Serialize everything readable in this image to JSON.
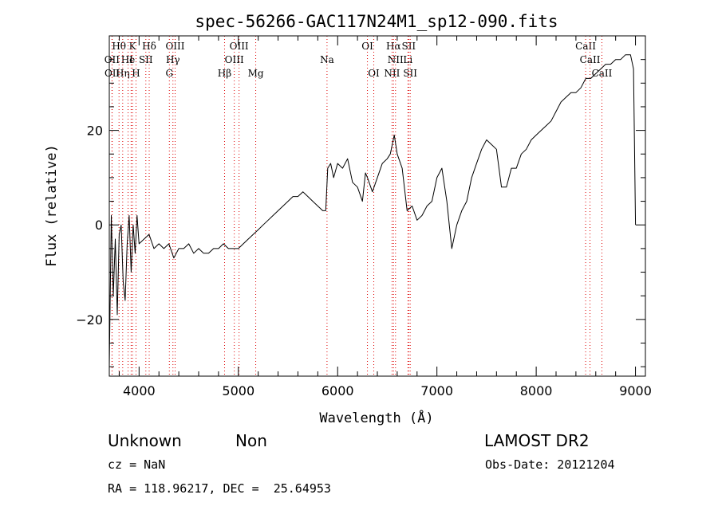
{
  "chart_data": {
    "type": "line",
    "title": "spec-56266-GAC117N24M1_sp12-090.fits",
    "xlabel": "Wavelength (Å)",
    "ylabel": "Flux (relative)",
    "xlim": [
      3700,
      9100
    ],
    "ylim": [
      -32,
      40
    ],
    "x_ticks": [
      4000,
      5000,
      6000,
      7000,
      8000,
      9000
    ],
    "x_tick_labels": [
      "4000",
      "5000",
      "6000",
      "7000",
      "8000",
      "9000"
    ],
    "y_ticks": [
      -20,
      0,
      20
    ],
    "y_tick_labels": [
      "−20",
      "0",
      "20"
    ],
    "grid": false,
    "series": [
      {
        "color": "#000000",
        "x": [
          3700,
          3720,
          3740,
          3760,
          3780,
          3800,
          3820,
          3840,
          3860,
          3880,
          3900,
          3920,
          3940,
          3960,
          3980,
          4000,
          4050,
          4100,
          4150,
          4200,
          4250,
          4300,
          4350,
          4400,
          4450,
          4500,
          4550,
          4600,
          4650,
          4700,
          4750,
          4800,
          4850,
          4900,
          4950,
          5000,
          5050,
          5100,
          5150,
          5200,
          5250,
          5300,
          5350,
          5400,
          5450,
          5500,
          5550,
          5600,
          5650,
          5700,
          5750,
          5800,
          5850,
          5880,
          5900,
          5930,
          5960,
          6000,
          6050,
          6100,
          6150,
          6200,
          6250,
          6280,
          6300,
          6350,
          6400,
          6450,
          6500,
          6530,
          6550,
          6570,
          6600,
          6650,
          6700,
          6750,
          6800,
          6850,
          6900,
          6950,
          7000,
          7050,
          7100,
          7130,
          7150,
          7200,
          7250,
          7300,
          7350,
          7400,
          7450,
          7500,
          7550,
          7600,
          7650,
          7700,
          7750,
          7800,
          7850,
          7900,
          7950,
          8000,
          8050,
          8100,
          8150,
          8200,
          8250,
          8300,
          8350,
          8400,
          8450,
          8500,
          8550,
          8600,
          8650,
          8700,
          8750,
          8800,
          8850,
          8900,
          8950,
          8980,
          9000
        ],
        "y": [
          -30,
          2,
          -15,
          -3,
          -19,
          -2,
          0,
          -12,
          -16,
          -4,
          2,
          -10,
          0,
          -6,
          2,
          -4,
          -3,
          -2,
          -5,
          -4,
          -5,
          -4,
          -7,
          -5,
          -5,
          -4,
          -6,
          -5,
          -6,
          -6,
          -5,
          -5,
          -4,
          -5,
          -5,
          -5,
          -4,
          -3,
          -2,
          -1,
          0,
          1,
          2,
          3,
          4,
          5,
          6,
          6,
          7,
          6,
          5,
          4,
          3,
          3,
          12,
          13,
          10,
          13,
          12,
          14,
          9,
          8,
          5,
          11,
          10,
          7,
          10,
          13,
          14,
          15,
          17,
          19,
          15,
          12,
          3,
          4,
          1,
          2,
          4,
          5,
          10,
          12,
          5,
          -1,
          -5,
          0,
          3,
          5,
          10,
          13,
          16,
          18,
          17,
          16,
          8,
          8,
          12,
          12,
          15,
          16,
          18,
          19,
          20,
          21,
          22,
          24,
          26,
          27,
          28,
          28,
          29,
          31,
          31,
          32,
          33,
          34,
          34,
          35,
          35,
          36,
          36,
          33,
          0
        ]
      }
    ],
    "spectral_lines": [
      {
        "label": "Hθ",
        "x": 3798,
        "row": 0
      },
      {
        "label": "K",
        "x": 3934,
        "row": 0
      },
      {
        "label": "Hδ",
        "x": 4102,
        "row": 0
      },
      {
        "label": "OIII",
        "x": 4363,
        "row": 0
      },
      {
        "label": "OIII",
        "x": 5007,
        "row": 0
      },
      {
        "label": "OI",
        "x": 6300,
        "row": 0
      },
      {
        "label": "Hα",
        "x": 6563,
        "row": 0
      },
      {
        "label": "SII",
        "x": 6716,
        "row": 0
      },
      {
        "label": "CaII",
        "x": 8498,
        "row": 0
      },
      {
        "label": "OII",
        "x": 3727,
        "row": 1
      },
      {
        "label": "He",
        "x": 3889,
        "row": 1
      },
      {
        "label": "I",
        "x": 3920,
        "row": 1
      },
      {
        "label": "SII",
        "x": 4068,
        "row": 1
      },
      {
        "label": "Hγ",
        "x": 4341,
        "row": 1
      },
      {
        "label": "OIII",
        "x": 4959,
        "row": 1
      },
      {
        "label": "Na",
        "x": 5893,
        "row": 1
      },
      {
        "label": "NII",
        "x": 6583,
        "row": 1
      },
      {
        "label": "Li",
        "x": 6708,
        "row": 1
      },
      {
        "label": "CaII",
        "x": 8542,
        "row": 1
      },
      {
        "label": "OII",
        "x": 3729,
        "row": 2
      },
      {
        "label": "Hη",
        "x": 3835,
        "row": 2
      },
      {
        "label": "H",
        "x": 3969,
        "row": 2
      },
      {
        "label": "G",
        "x": 4305,
        "row": 2
      },
      {
        "label": "Hβ",
        "x": 4861,
        "row": 2
      },
      {
        "label": "Mg",
        "x": 5175,
        "row": 2
      },
      {
        "label": "OI",
        "x": 6364,
        "row": 2
      },
      {
        "label": "NII",
        "x": 6548,
        "row": 2
      },
      {
        "label": "SII",
        "x": 6731,
        "row": 2
      },
      {
        "label": "CaII",
        "x": 8662,
        "row": 2
      }
    ]
  },
  "info": {
    "classification": "Unknown",
    "subclass": "Non",
    "survey": "LAMOST DR2",
    "cz": "cz = NaN",
    "obs_date": "Obs-Date: 20121204",
    "coords": "RA = 118.96217, DEC =  25.64953"
  }
}
